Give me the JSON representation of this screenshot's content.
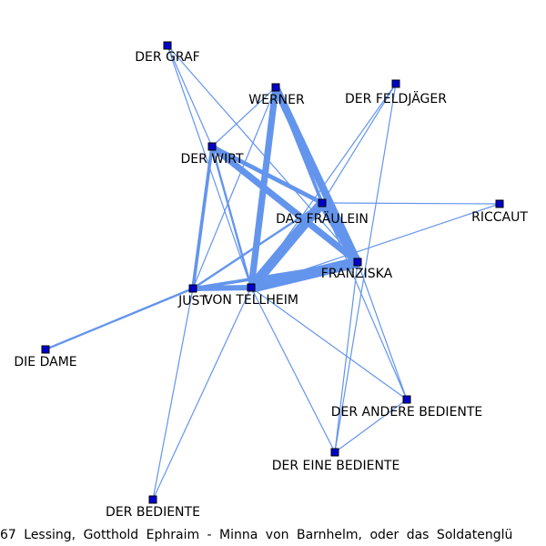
{
  "graph": {
    "edge_color": "#6495ED",
    "node_fill": "#0000CD",
    "node_stroke": "#000000",
    "nodes": [
      {
        "id": "graf",
        "label": "DER GRAF"
      },
      {
        "id": "werner",
        "label": "WERNER"
      },
      {
        "id": "feldjaeger",
        "label": "DER FELDJÄGER"
      },
      {
        "id": "wirt",
        "label": "DER WIRT"
      },
      {
        "id": "fraeulein",
        "label": "DAS FRÄULEIN"
      },
      {
        "id": "riccaut",
        "label": "RICCAUT"
      },
      {
        "id": "franziska",
        "label": "FRANZISKA"
      },
      {
        "id": "just",
        "label": "JUST"
      },
      {
        "id": "tellheim",
        "label": "VON TELLHEIM"
      },
      {
        "id": "dame",
        "label": "DIE DAME"
      },
      {
        "id": "andere",
        "label": "DER ANDERE BEDIENTE"
      },
      {
        "id": "eine",
        "label": "DER EINE BEDIENTE"
      },
      {
        "id": "bediente",
        "label": "DER BEDIENTE"
      }
    ],
    "edges": [
      {
        "source": "franziska",
        "target": "tellheim",
        "weight": 10
      },
      {
        "source": "fraeulein",
        "target": "tellheim",
        "weight": 9
      },
      {
        "source": "fraeulein",
        "target": "franziska",
        "weight": 8
      },
      {
        "source": "werner",
        "target": "franziska",
        "weight": 7
      },
      {
        "source": "werner",
        "target": "tellheim",
        "weight": 6
      },
      {
        "source": "wirt",
        "target": "franziska",
        "weight": 6
      },
      {
        "source": "wirt",
        "target": "fraeulein",
        "weight": 4
      },
      {
        "source": "just",
        "target": "tellheim",
        "weight": 5
      },
      {
        "source": "just",
        "target": "franziska",
        "weight": 3
      },
      {
        "source": "werner",
        "target": "fraeulein",
        "weight": 3
      },
      {
        "source": "wirt",
        "target": "just",
        "weight": 3
      },
      {
        "source": "wirt",
        "target": "tellheim",
        "weight": 2
      },
      {
        "source": "just",
        "target": "dame",
        "weight": 2
      },
      {
        "source": "just",
        "target": "fraeulein",
        "weight": 2
      },
      {
        "source": "graf",
        "target": "wirt",
        "weight": 1
      },
      {
        "source": "graf",
        "target": "franziska",
        "weight": 1
      },
      {
        "source": "graf",
        "target": "tellheim",
        "weight": 1
      },
      {
        "source": "werner",
        "target": "wirt",
        "weight": 1
      },
      {
        "source": "werner",
        "target": "just",
        "weight": 1
      },
      {
        "source": "feldjaeger",
        "target": "fraeulein",
        "weight": 1
      },
      {
        "source": "feldjaeger",
        "target": "tellheim",
        "weight": 1
      },
      {
        "source": "feldjaeger",
        "target": "eine",
        "weight": 1
      },
      {
        "source": "riccaut",
        "target": "fraeulein",
        "weight": 1
      },
      {
        "source": "riccaut",
        "target": "tellheim",
        "weight": 1
      },
      {
        "source": "fraeulein",
        "target": "andere",
        "weight": 1
      },
      {
        "source": "tellheim",
        "target": "andere",
        "weight": 1
      },
      {
        "source": "franziska",
        "target": "andere",
        "weight": 1
      },
      {
        "source": "franziska",
        "target": "eine",
        "weight": 1
      },
      {
        "source": "tellheim",
        "target": "eine",
        "weight": 1
      },
      {
        "source": "andere",
        "target": "eine",
        "weight": 1
      },
      {
        "source": "just",
        "target": "bediente",
        "weight": 1
      },
      {
        "source": "tellheim",
        "target": "bediente",
        "weight": 1
      }
    ]
  },
  "caption": "67 Lessing, Gotthold Ephraim - Minna von Barnhelm, oder das Soldatenglü"
}
